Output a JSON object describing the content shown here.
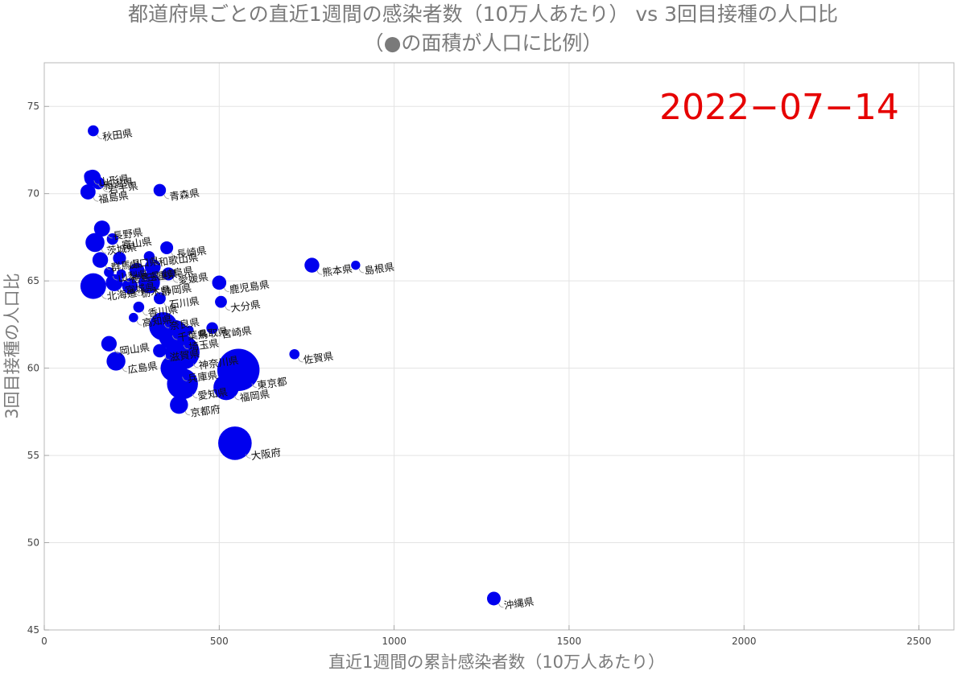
{
  "chart_data": {
    "type": "scatter",
    "title": "都道府県ごとの直近1週間の感染者数（10万人あたり） vs 3回目接種の人口比",
    "subtitle": "（●の面積が人口に比例）",
    "xlabel": "直近1週間の累計感染者数（10万人あたり）",
    "ylabel": "3回目接種の人口比",
    "annotation": "2022−07−14",
    "xlim": [
      0,
      2600
    ],
    "ylim": [
      45,
      77.5
    ],
    "xticks": [
      0,
      500,
      1000,
      1500,
      2000,
      2500
    ],
    "yticks": [
      45,
      50,
      55,
      60,
      65,
      70,
      75
    ],
    "marker_color": "#0000ee",
    "marker_area": "population",
    "grid": true,
    "legend": "none",
    "points": [
      {
        "label": "秋田県",
        "x": 140,
        "y": 73.6,
        "pop": 0.94
      },
      {
        "label": "山形県",
        "x": 130,
        "y": 71.0,
        "pop": 1.04
      },
      {
        "label": "新潟県",
        "x": 138,
        "y": 70.9,
        "pop": 2.18
      },
      {
        "label": "岩手県",
        "x": 155,
        "y": 70.6,
        "pop": 1.19
      },
      {
        "label": "福島県",
        "x": 125,
        "y": 70.1,
        "pop": 1.81
      },
      {
        "label": "青森県",
        "x": 330,
        "y": 70.2,
        "pop": 1.22
      },
      {
        "label": "長野県",
        "x": 165,
        "y": 68.0,
        "pop": 2.02
      },
      {
        "label": "富山県",
        "x": 195,
        "y": 67.4,
        "pop": 1.03
      },
      {
        "label": "茨城県",
        "x": 145,
        "y": 67.2,
        "pop": 2.85
      },
      {
        "label": "群馬県",
        "x": 160,
        "y": 66.2,
        "pop": 1.93
      },
      {
        "label": "長崎県",
        "x": 350,
        "y": 66.9,
        "pop": 1.3
      },
      {
        "label": "熊本県",
        "x": 765,
        "y": 65.9,
        "pop": 1.73
      },
      {
        "label": "島根県",
        "x": 890,
        "y": 65.9,
        "pop": 0.66
      },
      {
        "label": "和歌山県",
        "x": 300,
        "y": 66.4,
        "pop": 0.92
      },
      {
        "label": "山口県",
        "x": 215,
        "y": 66.3,
        "pop": 1.33
      },
      {
        "label": "岐阜県",
        "x": 310,
        "y": 65.8,
        "pop": 1.97
      },
      {
        "label": "三重県",
        "x": 265,
        "y": 65.6,
        "pop": 1.76
      },
      {
        "label": "山梨県",
        "x": 185,
        "y": 65.5,
        "pop": 0.81
      },
      {
        "label": "徳島県",
        "x": 220,
        "y": 65.4,
        "pop": 0.71
      },
      {
        "label": "愛媛県",
        "x": 355,
        "y": 65.4,
        "pop": 1.33
      },
      {
        "label": "宮城県",
        "x": 200,
        "y": 64.9,
        "pop": 2.29
      },
      {
        "label": "静岡県",
        "x": 300,
        "y": 64.9,
        "pop": 3.63
      },
      {
        "label": "栃木県",
        "x": 245,
        "y": 64.7,
        "pop": 1.93
      },
      {
        "label": "鹿児島県",
        "x": 500,
        "y": 64.9,
        "pop": 1.59
      },
      {
        "label": "北海道",
        "x": 140,
        "y": 64.7,
        "pop": 5.22
      },
      {
        "label": "石川県",
        "x": 330,
        "y": 64.0,
        "pop": 1.13
      },
      {
        "label": "大分県",
        "x": 505,
        "y": 63.8,
        "pop": 1.12
      },
      {
        "label": "香川県",
        "x": 270,
        "y": 63.5,
        "pop": 0.95
      },
      {
        "label": "高知県",
        "x": 255,
        "y": 62.9,
        "pop": 0.69
      },
      {
        "label": "奈良県",
        "x": 330,
        "y": 62.8,
        "pop": 1.32
      },
      {
        "label": "千葉県",
        "x": 340,
        "y": 62.4,
        "pop": 6.28
      },
      {
        "label": "鳥取県",
        "x": 415,
        "y": 62.2,
        "pop": 0.55
      },
      {
        "label": "宮崎県",
        "x": 480,
        "y": 62.3,
        "pop": 1.07
      },
      {
        "label": "埼玉県",
        "x": 370,
        "y": 61.9,
        "pop": 7.34
      },
      {
        "label": "佐賀県",
        "x": 715,
        "y": 60.8,
        "pop": 0.81
      },
      {
        "label": "岡山県",
        "x": 185,
        "y": 61.4,
        "pop": 1.89
      },
      {
        "label": "滋賀県",
        "x": 330,
        "y": 61.0,
        "pop": 1.41
      },
      {
        "label": "神奈川県",
        "x": 395,
        "y": 60.9,
        "pop": 9.24
      },
      {
        "label": "広島県",
        "x": 205,
        "y": 60.4,
        "pop": 2.8
      },
      {
        "label": "兵庫県",
        "x": 370,
        "y": 60.0,
        "pop": 5.47
      },
      {
        "label": "東京都",
        "x": 555,
        "y": 59.9,
        "pop": 14.04
      },
      {
        "label": "愛知県",
        "x": 395,
        "y": 59.1,
        "pop": 7.54
      },
      {
        "label": "福岡県",
        "x": 520,
        "y": 58.9,
        "pop": 5.12
      },
      {
        "label": "京都府",
        "x": 385,
        "y": 57.9,
        "pop": 2.58
      },
      {
        "label": "大阪府",
        "x": 545,
        "y": 55.7,
        "pop": 8.84
      },
      {
        "label": "沖縄県",
        "x": 1285,
        "y": 46.8,
        "pop": 1.47
      }
    ]
  }
}
